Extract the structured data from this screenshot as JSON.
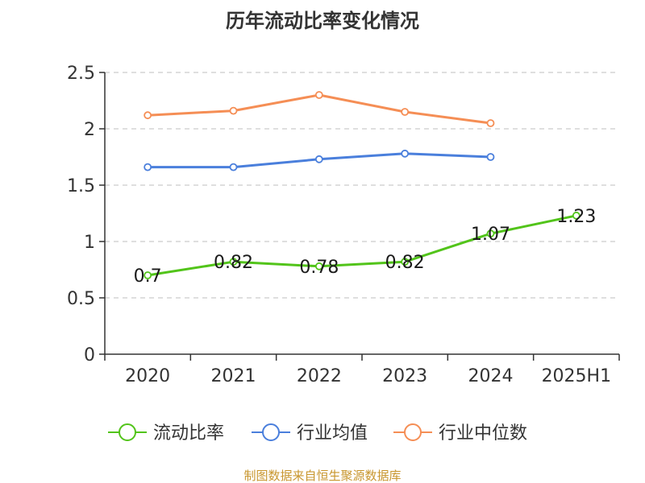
{
  "chart_data": {
    "type": "line",
    "title": "历年流动比率变化情况",
    "categories": [
      "2020",
      "2021",
      "2022",
      "2023",
      "2024",
      "2025H1"
    ],
    "ylim": [
      0,
      2.5
    ],
    "yticks": [
      "0",
      "0.5",
      "1",
      "1.5",
      "2",
      "2.5"
    ],
    "grid": true,
    "legend_position": "bottom",
    "series": [
      {
        "name": "流动比率",
        "color": "#52c41a",
        "values": [
          0.7,
          0.82,
          0.78,
          0.82,
          1.07,
          1.23
        ],
        "labels": [
          "0.7",
          "0.82",
          "0.78",
          "0.82",
          "1.07",
          "1.23"
        ]
      },
      {
        "name": "行业均值",
        "color": "#4a7fdc",
        "values": [
          1.66,
          1.66,
          1.73,
          1.78,
          1.75,
          null
        ]
      },
      {
        "name": "行业中位数",
        "color": "#f58e55",
        "values": [
          2.12,
          2.16,
          2.3,
          2.15,
          2.05,
          null
        ]
      }
    ]
  },
  "source": {
    "text": "制图数据来自恒生聚源数据库",
    "color": "#c8962e"
  }
}
